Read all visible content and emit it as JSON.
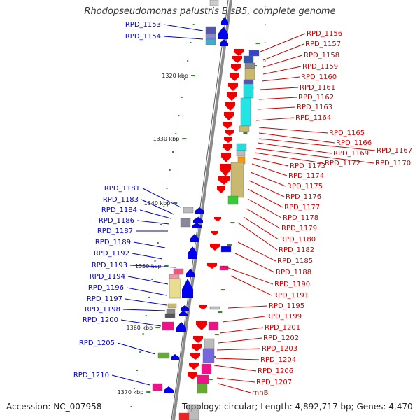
{
  "title": "Rhodopseudomonas palustris BisB5, complete genome",
  "accession": "Accession: NC_007958",
  "topology": "Topology: circular; Length: 4,892,717 bp; Genes: 4,470",
  "colors": {
    "left_label": "#0000cc",
    "right_label": "#cc0000",
    "backbone": "#8a8a8a",
    "tick": "#2e8b22",
    "forward_gene": "#0000ee",
    "reverse_gene": "#ee0000"
  },
  "kbp_ticks": [
    "1320 kbp",
    "1330 kbp",
    "1340 kbp",
    "1350 kbp",
    "1360 kbp",
    "1370 kbp"
  ],
  "left_genes": [
    "RPD_1153",
    "RPD_1154",
    "RPD_1181",
    "RPD_1183",
    "RPD_1184",
    "RPD_1186",
    "RPD_1187",
    "RPD_1189",
    "RPD_1192",
    "RPD_1193",
    "RPD_1194",
    "RPD_1196",
    "RPD_1197",
    "RPD_1198",
    "RPD_1200",
    "RPD_1205",
    "RPD_1210"
  ],
  "right_genes": [
    "RPD_1156",
    "RPD_1157",
    "RPD_1158",
    "RPD_1159",
    "RPD_1160",
    "RPD_1161",
    "RPD_1162",
    "RPD_1163",
    "RPD_1164",
    "RPD_1165",
    "RPD_1166",
    "RPD_1167",
    "RPD_1169",
    "RPD_1170",
    "RPD_1172",
    "RPD_1173",
    "RPD_1174",
    "RPD_1175",
    "RPD_1176",
    "RPD_1177",
    "RPD_1178",
    "RPD_1179",
    "RPD_1180",
    "RPD_1182",
    "RPD_1185",
    "RPD_1188",
    "RPD_1190",
    "RPD_1191",
    "RPD_1195",
    "RPD_1199",
    "RPD_1201",
    "RPD_1202",
    "RPD_1203",
    "RPD_1204",
    "RPD_1206",
    "RPD_1207",
    "rnhB"
  ]
}
